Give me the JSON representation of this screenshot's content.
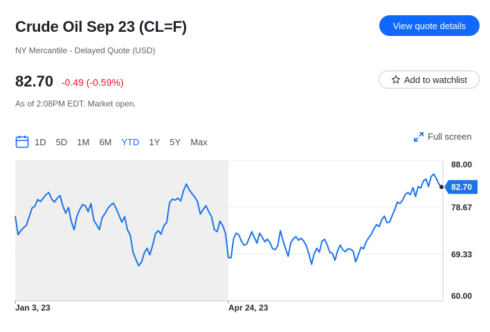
{
  "header": {
    "title": "Crude Oil Sep 23 (CL=F)",
    "subtitle": "NY Mercantile - Delayed Quote (USD)",
    "quote_button": "View quote details"
  },
  "quote": {
    "price": "82.70",
    "change": "-0.49 (-0.59%)",
    "as_of": "As of 2:08PM EDT. Market open.",
    "watchlist_button": "Add to watchlist"
  },
  "ranges": {
    "items": [
      "1D",
      "5D",
      "1M",
      "6M",
      "YTD",
      "1Y",
      "5Y",
      "Max"
    ],
    "active": "YTD",
    "fullscreen_label": "Full screen"
  },
  "icons": {
    "calendar": "calendar-icon",
    "star": "star-icon",
    "expand": "expand-icon"
  },
  "colors": {
    "accent": "#0f69ff",
    "negative": "#eb0f29",
    "line": "#1a73e8",
    "shaded": "#efefef"
  },
  "chart_data": {
    "type": "line",
    "x_start_label": "Jan 3, 23",
    "x_mid_label": "Apr 24, 23",
    "y_ticks": [
      "88.00",
      "78.67",
      "69.33",
      "60.00"
    ],
    "ylim": [
      60,
      88
    ],
    "grid": true,
    "shaded_until_label": "Apr 24, 23",
    "last_value_label": "82.70",
    "values": [
      76.9,
      73.2,
      74.0,
      74.6,
      75.1,
      76.8,
      78.5,
      78.9,
      80.2,
      79.8,
      80.5,
      81.2,
      81.6,
      80.3,
      79.7,
      80.5,
      81.0,
      78.9,
      77.5,
      78.6,
      75.8,
      74.2,
      76.9,
      78.2,
      79.2,
      79.0,
      77.8,
      79.4,
      76.1,
      75.2,
      74.2,
      76.6,
      77.4,
      78.4,
      79.1,
      79.5,
      78.4,
      77.1,
      75.7,
      76.8,
      74.2,
      73.1,
      69.7,
      68.3,
      67.0,
      67.7,
      69.5,
      70.5,
      69.2,
      71.1,
      73.4,
      74.0,
      73.3,
      75.0,
      75.6,
      79.5,
      80.3,
      80.1,
      80.5,
      79.9,
      82.0,
      83.3,
      82.2,
      81.4,
      80.7,
      79.8,
      77.3,
      78.2,
      79.0,
      77.8,
      76.8,
      74.2,
      73.8,
      75.9,
      75.0,
      73.4,
      68.6,
      68.6,
      72.4,
      73.5,
      73.2,
      71.9,
      71.1,
      71.3,
      72.5,
      73.8,
      72.6,
      71.5,
      73.5,
      72.7,
      71.8,
      72.3,
      71.6,
      70.4,
      70.2,
      71.0,
      74.0,
      72.1,
      70.4,
      68.9,
      71.6,
      72.4,
      72.8,
      72.1,
      72.5,
      71.9,
      71.0,
      69.3,
      67.3,
      69.4,
      70.5,
      69.7,
      71.9,
      72.3,
      71.2,
      69.7,
      69.5,
      68.1,
      70.0,
      71.1,
      70.2,
      69.8,
      70.4,
      70.3,
      69.9,
      67.8,
      69.2,
      70.7,
      70.4,
      71.8,
      72.6,
      73.3,
      74.4,
      75.2,
      74.8,
      76.2,
      76.9,
      75.6,
      75.7,
      77.0,
      78.2,
      79.7,
      79.4,
      80.1,
      81.2,
      81.6,
      81.2,
      82.6,
      80.8,
      82.8,
      82.5,
      83.9,
      84.3,
      82.8,
      84.8,
      85.3,
      84.4,
      83.3,
      82.7
    ],
    "mid_index": 76
  }
}
